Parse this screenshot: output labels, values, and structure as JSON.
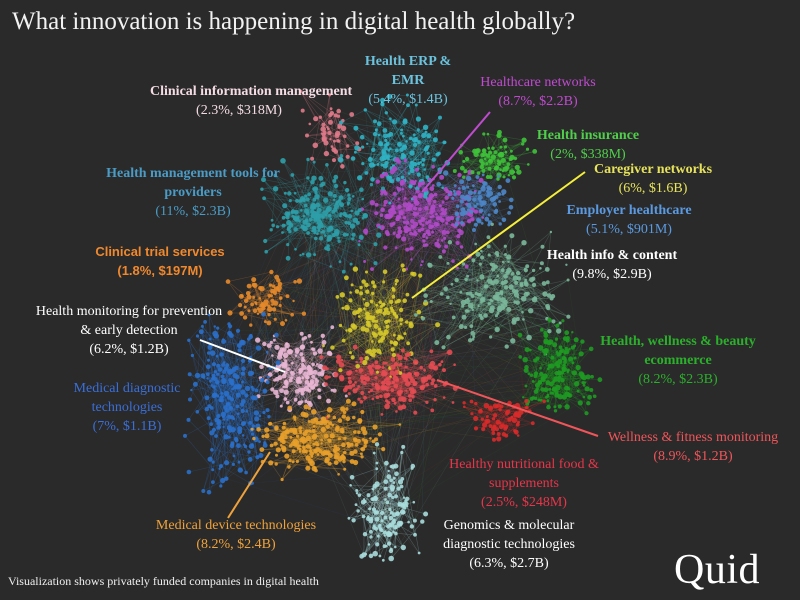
{
  "title": "What innovation is happening in digital health globally?",
  "footer": "Visualization shows privately funded companies in digital health",
  "brand": "Quid",
  "clusters": [
    {
      "id": "clinical-info",
      "name": "Clinical information management",
      "stat": "(2.3%, $318M)",
      "color": "#e07a8a",
      "label_color": "#f4dbe4"
    },
    {
      "id": "erp",
      "name": "Health ERP & EMR",
      "stat": "(5.4%, $1.4B)",
      "color": "#2fb3c4",
      "label_color": "#6bc3de"
    },
    {
      "id": "hc-networks",
      "name": "Healthcare networks",
      "stat": "(8.7%, $2.2B)",
      "color": "#b04ac8",
      "label_color": "#c04bd0"
    },
    {
      "id": "insurance",
      "name": "Health insurance",
      "stat": "(2%, $338M)",
      "color": "#3ec23a",
      "label_color": "#4fd04a"
    },
    {
      "id": "caregiver",
      "name": "Caregiver networks",
      "stat": "(6%, $1.6B)",
      "color": "#d6c92a",
      "label_color": "#e7e35a"
    },
    {
      "id": "employer",
      "name": "Employer healthcare",
      "stat": "(5.1%, $901M)",
      "color": "#4d86c8",
      "label_color": "#5b9ae0"
    },
    {
      "id": "mgmt-tools",
      "name": "Health management tools for providers",
      "stat": "(11%, $2.3B)",
      "color": "#2e9fa8",
      "label_color": "#4a9cc6"
    },
    {
      "id": "info-content",
      "name": "Health info & content",
      "stat": "(9.8%, $2.9B)",
      "color": "#7ab79a",
      "label_color": "#ffffff"
    },
    {
      "id": "trials",
      "name": "Clinical trial services",
      "stat": "(1.8%,  $197M)",
      "color": "#e68a2a",
      "label_color": "#f0892e"
    },
    {
      "id": "monitoring",
      "name": "Health monitoring for prevention & early detection",
      "stat": "(6.2%, $1.2B)",
      "color": "#e8b6d3",
      "label_color": "#ffffff"
    },
    {
      "id": "ecommerce",
      "name": "Health, wellness & beauty ecommerce",
      "stat": "(8.2%, $2.3B)",
      "color": "#1e9a22",
      "label_color": "#2bb02b"
    },
    {
      "id": "diagnostic",
      "name": "Medical diagnostic technologies",
      "stat": "(7%, $1.1B)",
      "color": "#2a6fc9",
      "label_color": "#3a6fd8"
    },
    {
      "id": "wellness",
      "name": "Wellness & fitness monitoring",
      "stat": "(8.9%, $1.2B)",
      "color": "#e44b52",
      "label_color": "#f0555a"
    },
    {
      "id": "nutrition",
      "name": "Healthy nutritional food & supplements",
      "stat": "(2.5%, $248M)",
      "color": "#d82a2a",
      "label_color": "#e8354a"
    },
    {
      "id": "device",
      "name": "Medical device technologies",
      "stat": "(8.2%, $2.4B)",
      "color": "#e8a02a",
      "label_color": "#f0a23a"
    },
    {
      "id": "genomics",
      "name": "Genomics & molecular diagnostic technologies",
      "stat": "(6.3%, $2.7B)",
      "color": "#a8dcdc",
      "label_color": "#ffffff"
    }
  ]
}
